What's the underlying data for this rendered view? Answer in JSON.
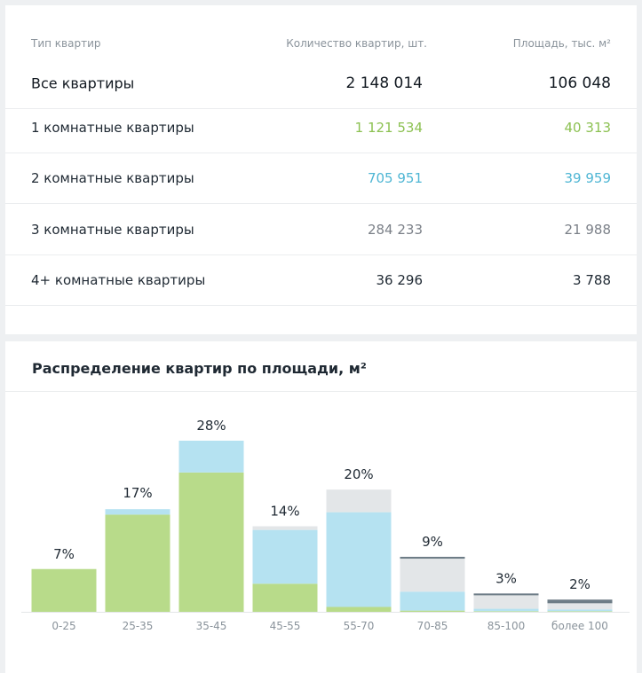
{
  "table": {
    "headers": {
      "type": "Тип квартир",
      "quantity": "Количество квартир, шт.",
      "area": "Площадь, тыс. м²"
    },
    "rows": [
      {
        "label": "Все квартиры",
        "quantity": "2 148 014",
        "area": "106 048",
        "color": "#111820"
      },
      {
        "label": "1 комнатные квартиры",
        "quantity": "1 121 534",
        "area": "40 313",
        "color": "#8cc152"
      },
      {
        "label": "2 комнатные квартиры",
        "quantity": "705 951",
        "area": "39 959",
        "color": "#4fb6d4"
      },
      {
        "label": "3 комнатные квартиры",
        "quantity": "284 233",
        "area": "21 988",
        "color": "#7b8088"
      },
      {
        "label": "4+ комнатные квартиры",
        "quantity": "36 296",
        "area": "3 788",
        "color": "#1f2933"
      }
    ]
  },
  "chart_data": {
    "type": "bar",
    "stacked": true,
    "title": "Распределение квартир по площади, м²",
    "categories": [
      "0-25",
      "25-35",
      "35-45",
      "45-55",
      "55-70",
      "70-85",
      "85-100",
      "более 100"
    ],
    "data_labels": [
      "7%",
      "17%",
      "28%",
      "14%",
      "20%",
      "9%",
      "3%",
      "2%"
    ],
    "totals": [
      7,
      17,
      28,
      14,
      20,
      9,
      3,
      2
    ],
    "ylim": [
      0,
      28
    ],
    "series": [
      {
        "color": "#b8db8a",
        "values": [
          7,
          15.9,
          22.8,
          4.6,
          0.8,
          0.2,
          0.1,
          0.1
        ]
      },
      {
        "color": "#b5e2f1",
        "values": [
          0,
          0.9,
          5.2,
          8.8,
          15.5,
          3.1,
          0.4,
          0.3
        ]
      },
      {
        "color": "#e3e6e8",
        "values": [
          0,
          0,
          0,
          0.6,
          3.7,
          5.4,
          2.2,
          1.0
        ]
      },
      {
        "color": "#6e7d87",
        "values": [
          0,
          0,
          0,
          0,
          0,
          0.3,
          0.3,
          0.6
        ]
      }
    ]
  }
}
